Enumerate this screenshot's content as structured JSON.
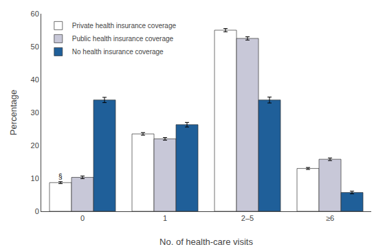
{
  "chart_data": {
    "type": "bar",
    "categories": [
      "0",
      "1",
      "2–5",
      "≥6"
    ],
    "series": [
      {
        "name": "Private health insurance coverage",
        "color": "#ffffff",
        "values": [
          8.7,
          23.5,
          55.0,
          13.0
        ],
        "errors": [
          0.3,
          0.4,
          0.5,
          0.3
        ]
      },
      {
        "name": "Public health insurance coverage",
        "color": "#c8c8d8",
        "values": [
          10.3,
          22.0,
          52.5,
          15.8
        ],
        "errors": [
          0.4,
          0.4,
          0.5,
          0.4
        ]
      },
      {
        "name": "No health insurance coverage",
        "color": "#1f5f99",
        "values": [
          33.8,
          26.3,
          33.8,
          5.7
        ],
        "errors": [
          0.8,
          0.7,
          0.9,
          0.4
        ]
      }
    ],
    "ylabel": "Percentage",
    "xlabel": "No. of health-care visits",
    "ylim": [
      0,
      60
    ],
    "yticks": [
      0,
      10,
      20,
      30,
      40,
      50,
      60
    ],
    "grid": false,
    "legend": "upper left",
    "annotations": [
      {
        "text": "§",
        "x": "0",
        "series": "Private health insurance coverage",
        "y": 8.9
      }
    ]
  }
}
